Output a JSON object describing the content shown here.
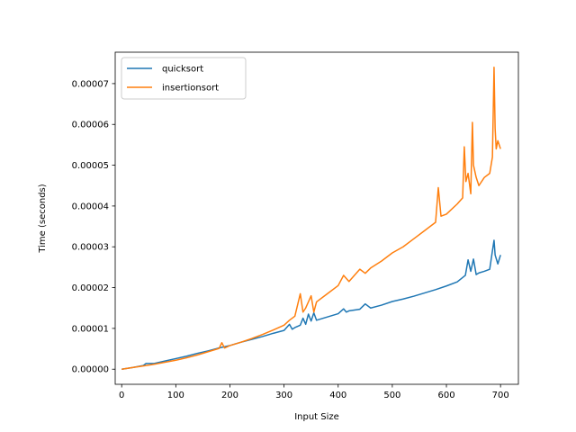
{
  "chart_data": {
    "type": "line",
    "xlabel": "Input Size",
    "ylabel": "Time (seconds)",
    "xlim": [
      -12,
      733
    ],
    "ylim": [
      -3.7e-06,
      7.77e-05
    ],
    "x_ticks": [
      0,
      100,
      200,
      300,
      400,
      500,
      600,
      700
    ],
    "x_tick_labels": [
      "0",
      "100",
      "200",
      "300",
      "400",
      "500",
      "600",
      "700"
    ],
    "y_ticks": [
      0,
      1e-05,
      2e-05,
      3e-05,
      4e-05,
      5e-05,
      6e-05,
      7e-05
    ],
    "y_tick_labels": [
      "0.00000",
      "0.00001",
      "0.00002",
      "0.00003",
      "0.00004",
      "0.00005",
      "0.00006",
      "0.00007"
    ],
    "grid": false,
    "legend_position": "top-left",
    "series": [
      {
        "name": "quicksort",
        "color": "#1f77b4",
        "points": [
          [
            0,
            0.0
          ],
          [
            20,
            4e-07
          ],
          [
            40,
            9e-07
          ],
          [
            45,
            1.4e-06
          ],
          [
            60,
            1.4e-06
          ],
          [
            80,
            2e-06
          ],
          [
            100,
            2.6e-06
          ],
          [
            120,
            3.2e-06
          ],
          [
            140,
            3.9e-06
          ],
          [
            160,
            4.5e-06
          ],
          [
            180,
            5.2e-06
          ],
          [
            200,
            5.8e-06
          ],
          [
            220,
            6.6e-06
          ],
          [
            240,
            7.3e-06
          ],
          [
            260,
            8e-06
          ],
          [
            280,
            8.8e-06
          ],
          [
            300,
            9.5e-06
          ],
          [
            310,
            1.1e-05
          ],
          [
            315,
            9.8e-06
          ],
          [
            320,
            1.02e-05
          ],
          [
            330,
            1.08e-05
          ],
          [
            335,
            1.25e-05
          ],
          [
            340,
            1.1e-05
          ],
          [
            345,
            1.35e-05
          ],
          [
            350,
            1.18e-05
          ],
          [
            355,
            1.38e-05
          ],
          [
            360,
            1.2e-05
          ],
          [
            380,
            1.28e-05
          ],
          [
            400,
            1.36e-05
          ],
          [
            410,
            1.48e-05
          ],
          [
            415,
            1.4e-05
          ],
          [
            420,
            1.43e-05
          ],
          [
            440,
            1.47e-05
          ],
          [
            450,
            1.6e-05
          ],
          [
            460,
            1.5e-05
          ],
          [
            480,
            1.57e-05
          ],
          [
            500,
            1.66e-05
          ],
          [
            520,
            1.72e-05
          ],
          [
            540,
            1.79e-05
          ],
          [
            560,
            1.87e-05
          ],
          [
            580,
            1.95e-05
          ],
          [
            600,
            2.04e-05
          ],
          [
            620,
            2.14e-05
          ],
          [
            635,
            2.3e-05
          ],
          [
            640,
            2.68e-05
          ],
          [
            645,
            2.4e-05
          ],
          [
            650,
            2.7e-05
          ],
          [
            655,
            2.32e-05
          ],
          [
            660,
            2.36e-05
          ],
          [
            670,
            2.4e-05
          ],
          [
            680,
            2.45e-05
          ],
          [
            685,
            2.9e-05
          ],
          [
            688,
            3.16e-05
          ],
          [
            690,
            2.8e-05
          ],
          [
            695,
            2.58e-05
          ],
          [
            700,
            2.8e-05
          ]
        ]
      },
      {
        "name": "insertionsort",
        "color": "#ff7f0e",
        "points": [
          [
            0,
            0.0
          ],
          [
            20,
            4e-07
          ],
          [
            40,
            8e-07
          ],
          [
            60,
            1.2e-06
          ],
          [
            80,
            1.7e-06
          ],
          [
            100,
            2.2e-06
          ],
          [
            120,
            2.8e-06
          ],
          [
            140,
            3.5e-06
          ],
          [
            160,
            4.3e-06
          ],
          [
            180,
            5.1e-06
          ],
          [
            185,
            6.5e-06
          ],
          [
            190,
            5.2e-06
          ],
          [
            200,
            5.8e-06
          ],
          [
            220,
            6.6e-06
          ],
          [
            240,
            7.5e-06
          ],
          [
            260,
            8.5e-06
          ],
          [
            280,
            9.6e-06
          ],
          [
            300,
            1.08e-05
          ],
          [
            310,
            1.2e-05
          ],
          [
            320,
            1.3e-05
          ],
          [
            330,
            1.85e-05
          ],
          [
            335,
            1.4e-05
          ],
          [
            340,
            1.5e-05
          ],
          [
            350,
            1.8e-05
          ],
          [
            355,
            1.4e-05
          ],
          [
            360,
            1.65e-05
          ],
          [
            380,
            1.85e-05
          ],
          [
            400,
            2.05e-05
          ],
          [
            410,
            2.3e-05
          ],
          [
            420,
            2.15e-05
          ],
          [
            440,
            2.45e-05
          ],
          [
            450,
            2.35e-05
          ],
          [
            460,
            2.48e-05
          ],
          [
            480,
            2.65e-05
          ],
          [
            500,
            2.85e-05
          ],
          [
            520,
            3e-05
          ],
          [
            540,
            3.2e-05
          ],
          [
            560,
            3.4e-05
          ],
          [
            580,
            3.6e-05
          ],
          [
            585,
            4.45e-05
          ],
          [
            590,
            3.75e-05
          ],
          [
            600,
            3.8e-05
          ],
          [
            620,
            4.05e-05
          ],
          [
            630,
            4.2e-05
          ],
          [
            633,
            5.45e-05
          ],
          [
            636,
            4.6e-05
          ],
          [
            640,
            4.8e-05
          ],
          [
            645,
            4.3e-05
          ],
          [
            648,
            6.05e-05
          ],
          [
            650,
            5e-05
          ],
          [
            655,
            4.7e-05
          ],
          [
            660,
            4.5e-05
          ],
          [
            670,
            4.7e-05
          ],
          [
            680,
            4.8e-05
          ],
          [
            685,
            5.2e-05
          ],
          [
            688,
            7.4e-05
          ],
          [
            690,
            5.9e-05
          ],
          [
            692,
            5.4e-05
          ],
          [
            695,
            5.6e-05
          ],
          [
            700,
            5.4e-05
          ]
        ]
      }
    ]
  }
}
